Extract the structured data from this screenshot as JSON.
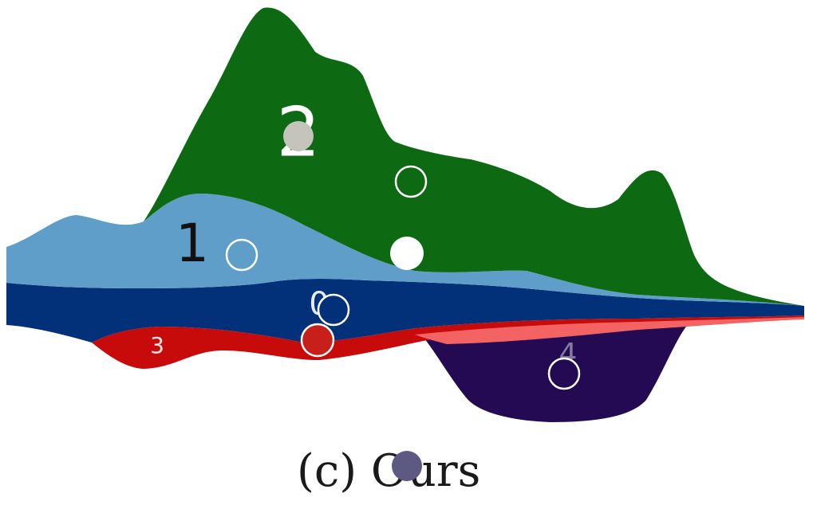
{
  "chart_data": {
    "type": "area",
    "style": "streamgraph",
    "grid": false,
    "legend": "none",
    "layers": [
      {
        "label": "2",
        "color": "#0d6a12"
      },
      {
        "label": "1",
        "color": "#5f9ec8"
      },
      {
        "label": "0",
        "color": "#023179"
      },
      {
        "label": "3",
        "color": "#c70a0a",
        "highlight_color": "#f46363"
      },
      {
        "label": "4",
        "color": "#230a52"
      }
    ],
    "markers": [
      {
        "layer": "2",
        "style": "filled",
        "color": "#c4c4bc"
      },
      {
        "layer": "2",
        "style": "outline",
        "color": "#0d6a12"
      },
      {
        "layer": "1",
        "style": "outline",
        "color": "#5f9ec8"
      },
      {
        "layer": "1",
        "style": "filled",
        "color": "#ffffff"
      },
      {
        "layer": "0",
        "style": "outline",
        "color": "#023179"
      },
      {
        "layer": "3",
        "style": "filled",
        "color": "#c7201a"
      },
      {
        "layer": "4",
        "style": "outline",
        "color": "#230a52"
      }
    ]
  },
  "caption": {
    "text": "(c) Ours",
    "marker_color": "#5c5a83"
  }
}
